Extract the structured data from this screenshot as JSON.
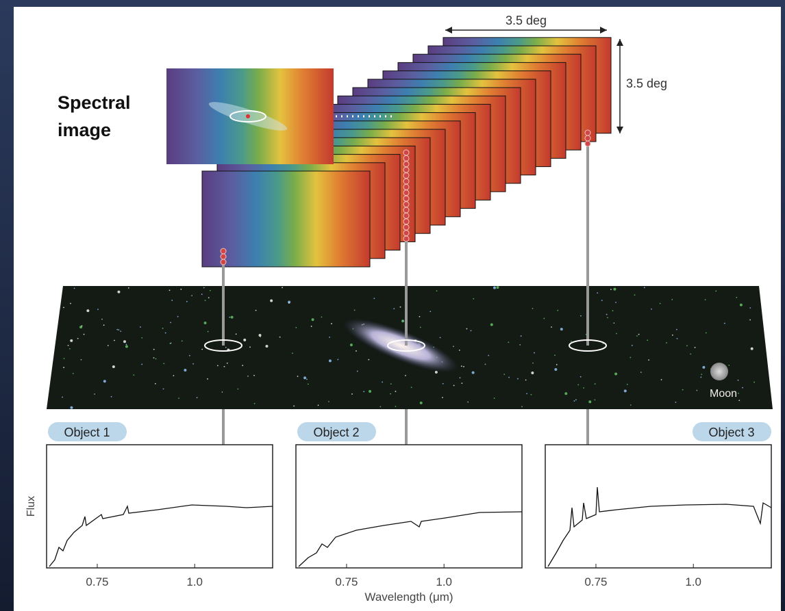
{
  "cube": {
    "label": "Spectral image",
    "width_label": "3.5 deg",
    "height_label": "3.5 deg"
  },
  "sky": {
    "moon_label": "Moon"
  },
  "panels": [
    {
      "title": "Object 1",
      "xlim": [
        0.62,
        1.2
      ],
      "xticks": [
        0.75,
        {
          "value": 1,
          "label": "1.0"
        }
      ]
    },
    {
      "title": "Object 2",
      "xlim": [
        0.62,
        1.2
      ],
      "xticks": [
        0.75,
        {
          "value": 1,
          "label": "1.0"
        }
      ]
    },
    {
      "title": "Object 3",
      "xlim": [
        0.62,
        1.2
      ],
      "xticks": [
        0.75,
        {
          "value": 1,
          "label": "1.0"
        }
      ]
    }
  ],
  "y_label": "Flux",
  "x_label": "Wavelength (μm)"
}
